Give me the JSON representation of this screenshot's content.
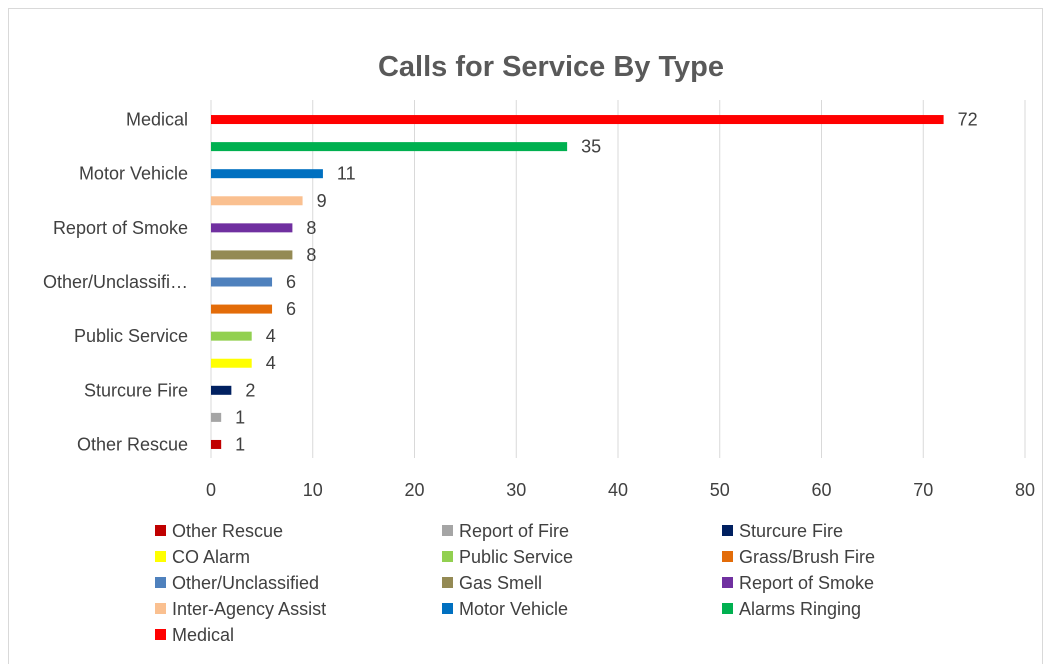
{
  "chart_data": {
    "type": "bar",
    "orientation": "horizontal",
    "title": "Calls for Service By Type",
    "xlim": [
      0,
      80
    ],
    "x_ticks": [
      0,
      10,
      20,
      30,
      40,
      50,
      60,
      70,
      80
    ],
    "grid": true,
    "legend_position": "bottom",
    "categories": [
      "Other Rescue",
      "Report of Fire",
      "Sturcure Fire",
      "CO Alarm",
      "Public Service",
      "Grass/Brush Fire",
      "Other/Unclassified",
      "Gas Smell",
      "Report of Smoke",
      "Inter-Agency Assist",
      "Motor Vehicle",
      "Alarms Ringing",
      "Medical"
    ],
    "axis_category_labels": [
      {
        "index": 0,
        "text": "Other Rescue"
      },
      {
        "index": 2,
        "text": "Sturcure Fire"
      },
      {
        "index": 4,
        "text": "Public Service"
      },
      {
        "index": 6,
        "text": "Other/Unclassifi…"
      },
      {
        "index": 8,
        "text": "Report of Smoke"
      },
      {
        "index": 10,
        "text": "Motor Vehicle"
      },
      {
        "index": 12,
        "text": "Medical"
      }
    ],
    "values": [
      1,
      1,
      2,
      4,
      4,
      6,
      6,
      8,
      8,
      9,
      11,
      35,
      72
    ],
    "colors": [
      "#c00000",
      "#a5a5a5",
      "#002060",
      "#ffff00",
      "#92d050",
      "#e36c09",
      "#4f81bd",
      "#948a54",
      "#7030a0",
      "#fac090",
      "#0070c0",
      "#00b050",
      "#ff0000"
    ]
  }
}
